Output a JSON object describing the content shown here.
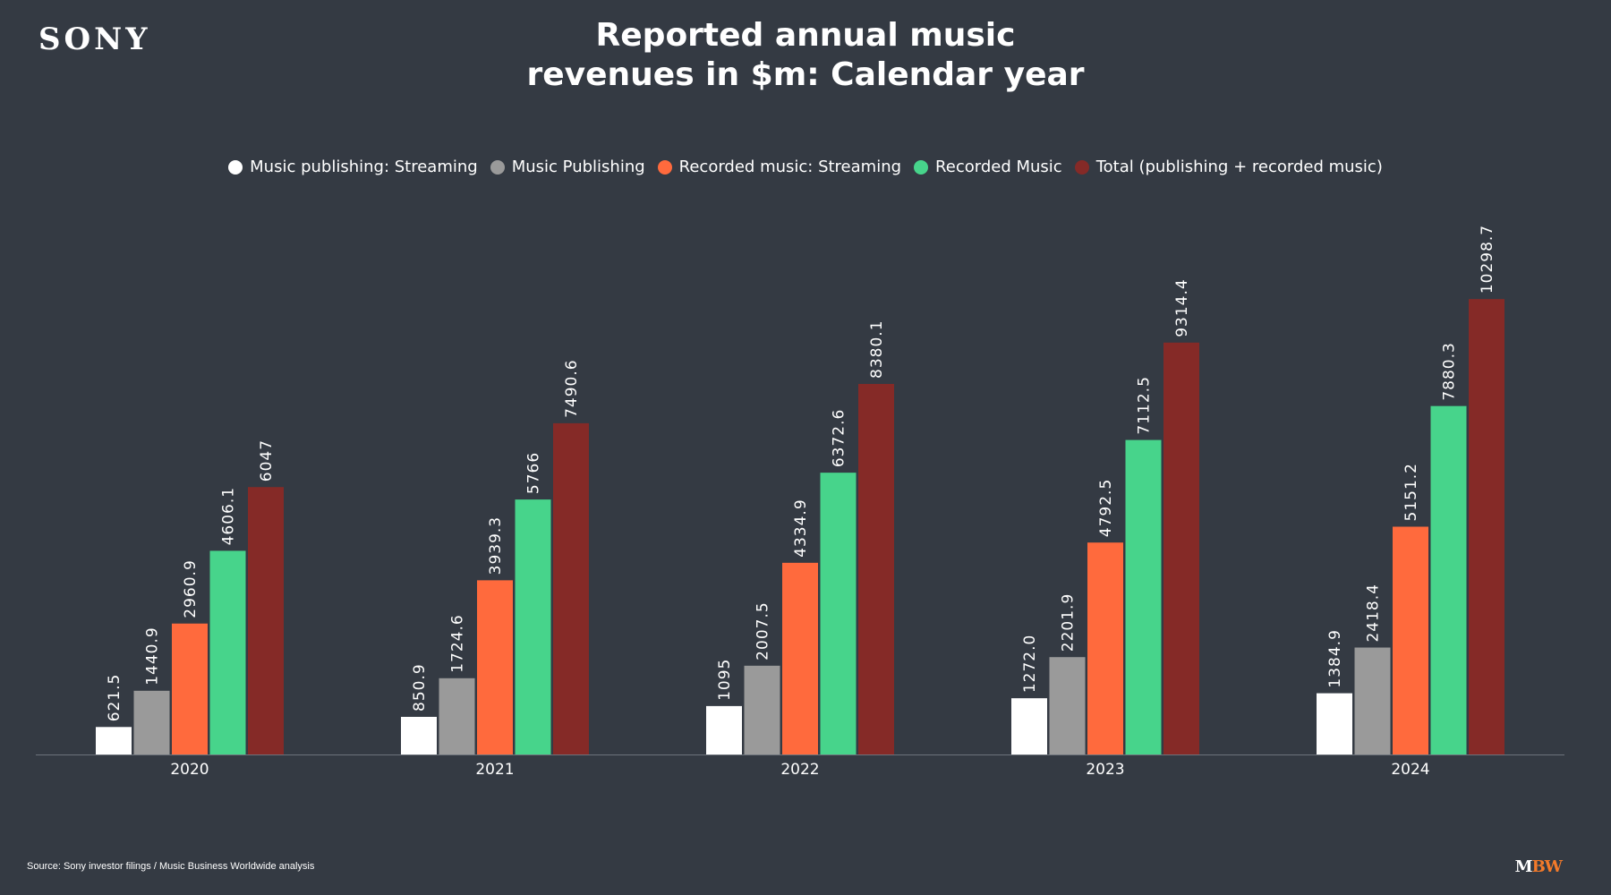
{
  "logo": "SONY",
  "title_line1": "Reported annual music",
  "title_line2": "revenues in $m: Calendar year",
  "source": "Source: Sony investor filings / Music Business Worldwide analysis",
  "brand": {
    "m": "M",
    "bw": "BW"
  },
  "colors": {
    "background": "#343a43",
    "publishing_streaming": "#ffffff",
    "music_publishing": "#9a9a9a",
    "recorded_streaming": "#ff6a3d",
    "recorded_music": "#47d48b",
    "total": "#852a27"
  },
  "chart_data": {
    "type": "bar",
    "title": "Reported annual music revenues in $m: Calendar year",
    "categories": [
      "2020",
      "2021",
      "2022",
      "2023",
      "2024"
    ],
    "legend_position": "top-center",
    "grid": false,
    "ylim": [
      0,
      11800
    ],
    "series": [
      {
        "name": "Music publishing: Streaming",
        "color": "#ffffff",
        "values": [
          621.5,
          850.9,
          1095,
          1272.0,
          1384.9
        ],
        "labels": [
          "621.5",
          "850.9",
          "1095",
          "1272.0",
          "1384.9"
        ]
      },
      {
        "name": "Music Publishing",
        "color": "#9a9a9a",
        "values": [
          1440.9,
          1724.6,
          2007.5,
          2201.9,
          2418.4
        ],
        "labels": [
          "1440.9",
          "1724.6",
          "2007.5",
          "2201.9",
          "2418.4"
        ]
      },
      {
        "name": "Recorded music: Streaming",
        "color": "#ff6a3d",
        "values": [
          2960.9,
          3939.3,
          4334.9,
          4792.5,
          5151.2
        ],
        "labels": [
          "2960.9",
          "3939.3",
          "4334.9",
          "4792.5",
          "5151.2"
        ]
      },
      {
        "name": "Recorded Music",
        "color": "#47d48b",
        "values": [
          4606.1,
          5766,
          6372.6,
          7112.5,
          7880.3
        ],
        "labels": [
          "4606.1",
          "5766",
          "6372.6",
          "7112.5",
          "7880.3"
        ]
      },
      {
        "name": "Total (publishing + recorded music)",
        "color": "#852a27",
        "values": [
          6047,
          7490.6,
          8380.1,
          9314.4,
          10298.7
        ],
        "labels": [
          "6047",
          "7490.6",
          "8380.1",
          "9314.4",
          "10298.7"
        ]
      }
    ]
  }
}
